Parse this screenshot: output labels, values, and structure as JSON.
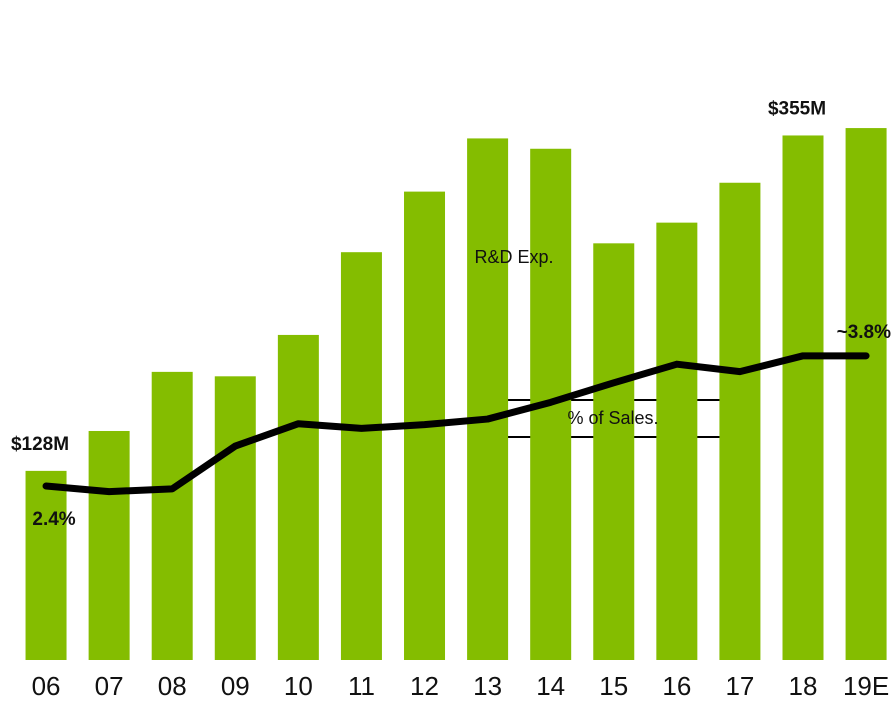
{
  "chart_data": {
    "type": "bar_line",
    "categories": [
      "06",
      "07",
      "08",
      "09",
      "10",
      "11",
      "12",
      "13",
      "14",
      "15",
      "16",
      "17",
      "18",
      "19E"
    ],
    "series": [
      {
        "name": "R&D  Exp.",
        "type": "bar",
        "color": "#84bd00",
        "values": [
          128,
          155,
          195,
          192,
          220,
          276,
          317,
          353,
          346,
          282,
          296,
          323,
          355,
          360
        ],
        "value_labels": [
          "$128M",
          null,
          null,
          null,
          null,
          null,
          null,
          null,
          null,
          null,
          null,
          null,
          "$355M",
          null
        ]
      },
      {
        "name": "% of Sales.",
        "type": "line",
        "axis": "y2",
        "color": "#000000",
        "values": [
          2.4,
          2.34,
          2.37,
          2.83,
          3.07,
          3.02,
          3.06,
          3.12,
          3.3,
          3.51,
          3.71,
          3.63,
          3.8,
          3.8
        ],
        "value_labels": [
          "2.4%",
          null,
          null,
          null,
          null,
          null,
          null,
          null,
          null,
          null,
          null,
          null,
          null,
          "~3.8%"
        ]
      }
    ],
    "ylim": [
      0,
      379
    ],
    "y2lim": [
      0.53,
      6.55
    ]
  }
}
